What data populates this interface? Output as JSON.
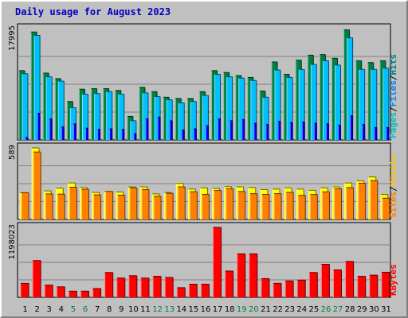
{
  "chart_data": {
    "type": "bar",
    "title": "Daily usage for August 2023",
    "categories": [
      "1",
      "2",
      "3",
      "4",
      "5",
      "6",
      "7",
      "8",
      "9",
      "10",
      "11",
      "12",
      "13",
      "14",
      "15",
      "16",
      "17",
      "18",
      "19",
      "20",
      "21",
      "22",
      "23",
      "24",
      "25",
      "26",
      "27",
      "28",
      "29",
      "30",
      "31"
    ],
    "weekend_days": [
      "5",
      "6",
      "12",
      "13",
      "19",
      "20",
      "26",
      "27"
    ],
    "panels": [
      {
        "name": "hits-files-pages",
        "scale_max_label": "17995",
        "scale_max": 17995,
        "legend": [
          "Pages",
          "/",
          "Files",
          "/",
          "Hits"
        ],
        "series": [
          {
            "name": "Hits",
            "color": "#008040",
            "values": [
              11200,
              17450,
              10800,
              9900,
              6200,
              8200,
              8300,
              8300,
              8000,
              3800,
              8500,
              7800,
              6900,
              6700,
              6700,
              7800,
              11200,
              10900,
              10400,
              10100,
              7900,
              12600,
              10600,
              12900,
              13700,
              13800,
              13200,
              17800,
              12800,
              12500,
              12800
            ]
          },
          {
            "name": "Files",
            "color": "#00c0ff",
            "values": [
              10700,
              16900,
              10200,
              9500,
              5200,
              7400,
              7500,
              7800,
              7400,
              3100,
              7600,
              7000,
              6500,
              6000,
              6200,
              7200,
              10600,
              10200,
              10000,
              9600,
              6900,
              11300,
              10100,
              11400,
              12200,
              12800,
              12100,
              16500,
              11400,
              11400,
              11600
            ]
          },
          {
            "name": "Pages",
            "color": "#0000ff",
            "values": [
              400,
              4300,
              3400,
              2100,
              2600,
              1900,
              1700,
              1800,
              1700,
              1000,
              3400,
              3700,
              3100,
              1600,
              1800,
              2300,
              3400,
              3100,
              3300,
              2700,
              2500,
              3000,
              2800,
              2900,
              2700,
              2600,
              2400,
              3900,
              2500,
              2000,
              2000
            ]
          }
        ]
      },
      {
        "name": "visits-sites",
        "scale_max_label": "589",
        "scale_max": 589,
        "legend": [
          "Sites",
          "/",
          "Visits"
        ],
        "series": [
          {
            "name": "Visits",
            "color": "#ffff00",
            "values": [
              220,
              589,
              235,
              258,
              300,
              262,
              222,
              230,
              226,
              268,
              268,
              210,
              222,
              296,
              250,
              260,
              255,
              270,
              268,
              262,
              246,
              250,
              260,
              250,
              240,
              260,
              268,
              300,
              318,
              350,
              205
            ]
          },
          {
            "name": "Sites",
            "color": "#ff8000",
            "values": [
              220,
              555,
              210,
              208,
              265,
              248,
              202,
              230,
              200,
              260,
              246,
              190,
              215,
              268,
              228,
              206,
              238,
              252,
              230,
              212,
              206,
              212,
              223,
              198,
              205,
              227,
              252,
              262,
              298,
              320,
              175
            ]
          }
        ]
      },
      {
        "name": "kbytes",
        "scale_max_label": "1198023",
        "scale_max": 1198023,
        "legend": [
          "KBytes"
        ],
        "series": [
          {
            "name": "KBytes",
            "color": "#ff0000",
            "values": [
              240000,
              630000,
              210000,
              180000,
              105000,
              105000,
              150000,
              425000,
              330000,
              370000,
              330000,
              360000,
              340000,
              165000,
              225000,
              225000,
              1198023,
              450000,
              745000,
              745000,
              320000,
              240000,
              280000,
              295000,
              425000,
              565000,
              470000,
              615000,
              360000,
              380000,
              430000
            ]
          }
        ]
      }
    ]
  }
}
